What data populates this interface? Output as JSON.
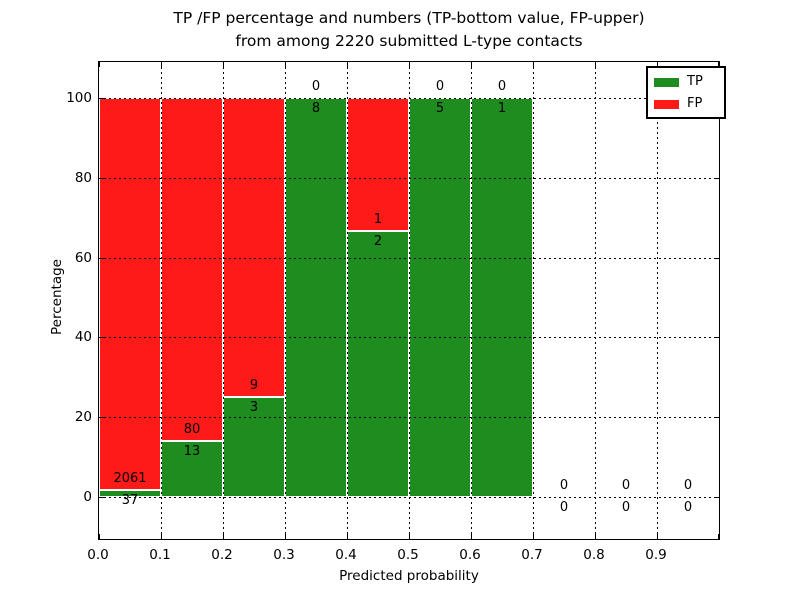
{
  "figure": {
    "title_line1": "TP /FP percentage and numbers (TP-bottom value, FP-upper)",
    "title_line2": "from among 2220 submitted L-type contacts"
  },
  "chart_data": {
    "type": "bar",
    "stacked": true,
    "percent_normalized": true,
    "title": "TP /FP percentage and numbers (TP-bottom value, FP-upper) from among 2220 submitted L-type contacts",
    "xlabel": "Predicted probability",
    "ylabel": "Percentage",
    "total_contacts": 2220,
    "xlim": [
      0.0,
      1.0
    ],
    "ylim": [
      -11,
      109
    ],
    "x_tick_labels": [
      "0.0",
      "0.1",
      "0.2",
      "0.3",
      "0.4",
      "0.5",
      "0.6",
      "0.7",
      "0.8",
      "0.9"
    ],
    "y_ticks": [
      0,
      20,
      40,
      60,
      80,
      100
    ],
    "grid": true,
    "legend_position": "upper right",
    "categories": [
      "0.0-0.1",
      "0.1-0.2",
      "0.2-0.3",
      "0.3-0.4",
      "0.4-0.5",
      "0.5-0.6",
      "0.6-0.7",
      "0.7-0.8",
      "0.8-0.9",
      "0.9-1.0"
    ],
    "series": [
      {
        "name": "TP",
        "values": [
          37,
          13,
          3,
          8,
          2,
          5,
          1,
          0,
          0,
          0
        ],
        "color": "#1e8c1e"
      },
      {
        "name": "FP",
        "values": [
          2061,
          80,
          9,
          0,
          1,
          0,
          0,
          0,
          0,
          0
        ],
        "color": "#ff1a1a"
      }
    ],
    "bins": [
      {
        "range": "0.0-0.1",
        "tp": 37,
        "fp": 2061
      },
      {
        "range": "0.1-0.2",
        "tp": 13,
        "fp": 80
      },
      {
        "range": "0.2-0.3",
        "tp": 3,
        "fp": 9
      },
      {
        "range": "0.3-0.4",
        "tp": 8,
        "fp": 0
      },
      {
        "range": "0.4-0.5",
        "tp": 2,
        "fp": 1
      },
      {
        "range": "0.5-0.6",
        "tp": 5,
        "fp": 0
      },
      {
        "range": "0.6-0.7",
        "tp": 1,
        "fp": 0
      },
      {
        "range": "0.7-0.8",
        "tp": 0,
        "fp": 0
      },
      {
        "range": "0.8-0.9",
        "tp": 0,
        "fp": 0
      },
      {
        "range": "0.9-1.0",
        "tp": 0,
        "fp": 0
      }
    ],
    "legend": [
      {
        "label": "TP",
        "color": "#1e8c1e"
      },
      {
        "label": "FP",
        "color": "#ff1a1a"
      }
    ]
  }
}
